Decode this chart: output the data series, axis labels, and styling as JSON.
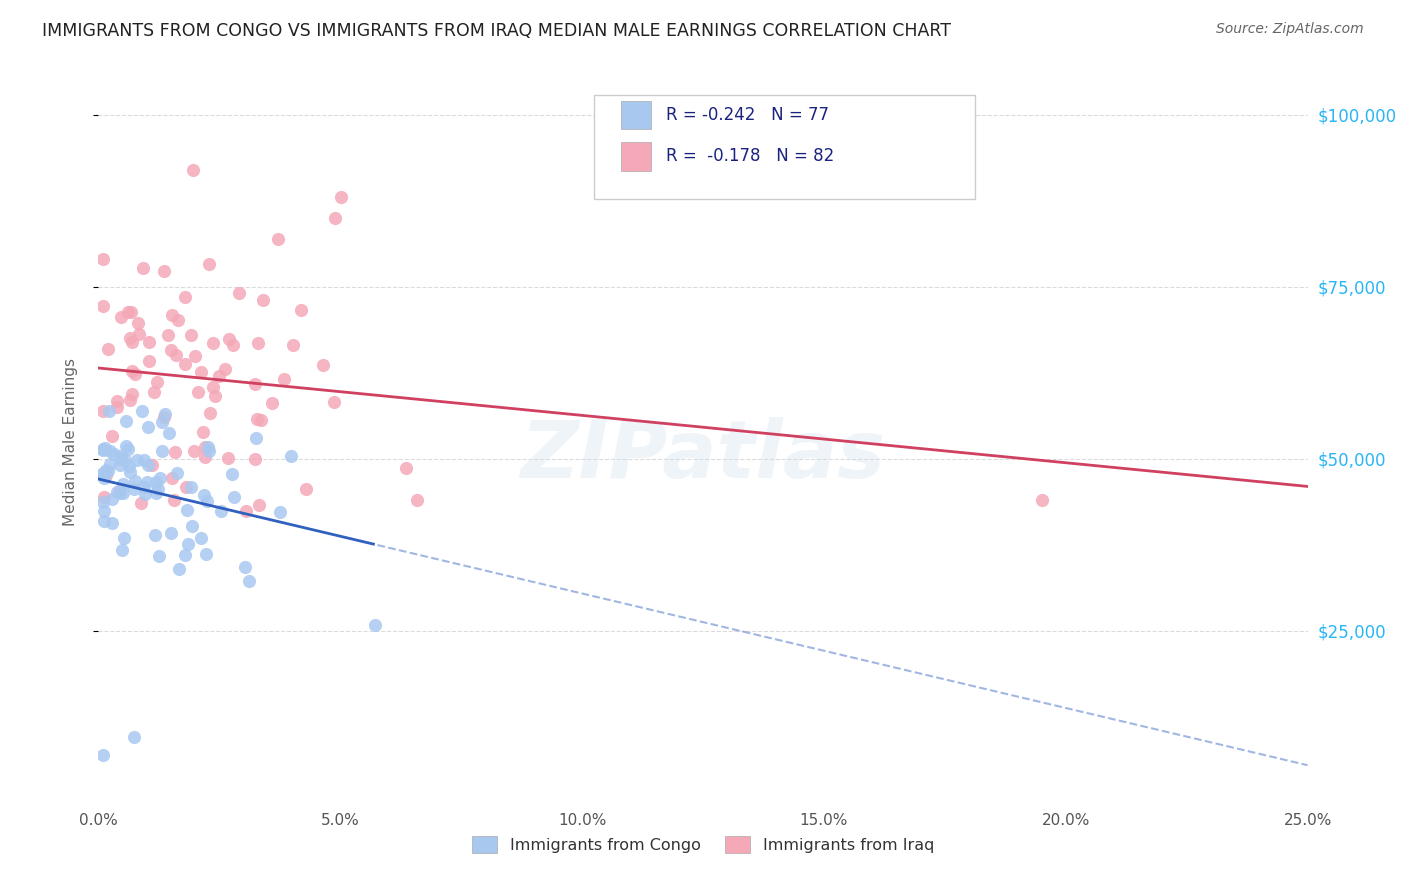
{
  "title": "IMMIGRANTS FROM CONGO VS IMMIGRANTS FROM IRAQ MEDIAN MALE EARNINGS CORRELATION CHART",
  "source": "Source: ZipAtlas.com",
  "xlabel_ticks": [
    "0.0%",
    "5.0%",
    "10.0%",
    "15.0%",
    "20.0%",
    "25.0%"
  ],
  "xlabel_vals": [
    0.0,
    0.05,
    0.1,
    0.15,
    0.2,
    0.25
  ],
  "ylabel": "Median Male Earnings",
  "ylabel_ticks_labels": [
    "$25,000",
    "$50,000",
    "$75,000",
    "$100,000"
  ],
  "ylabel_ticks_vals": [
    25000,
    50000,
    75000,
    100000
  ],
  "xlim": [
    0.0,
    0.25
  ],
  "ylim": [
    0,
    105000
  ],
  "legend_congo": "Immigrants from Congo",
  "legend_iraq": "Immigrants from Iraq",
  "R_congo": "-0.242",
  "N_congo": "77",
  "R_iraq": "-0.178",
  "N_iraq": "82",
  "congo_color": "#a8c8f0",
  "iraq_color": "#f4a8b8",
  "congo_line_color": "#3060c0",
  "iraq_line_color": "#d04060",
  "watermark": "ZIPatlas",
  "background_color": "#ffffff",
  "grid_color": "#cccccc",
  "title_color": "#222222",
  "right_tick_color": "#29b6f6"
}
